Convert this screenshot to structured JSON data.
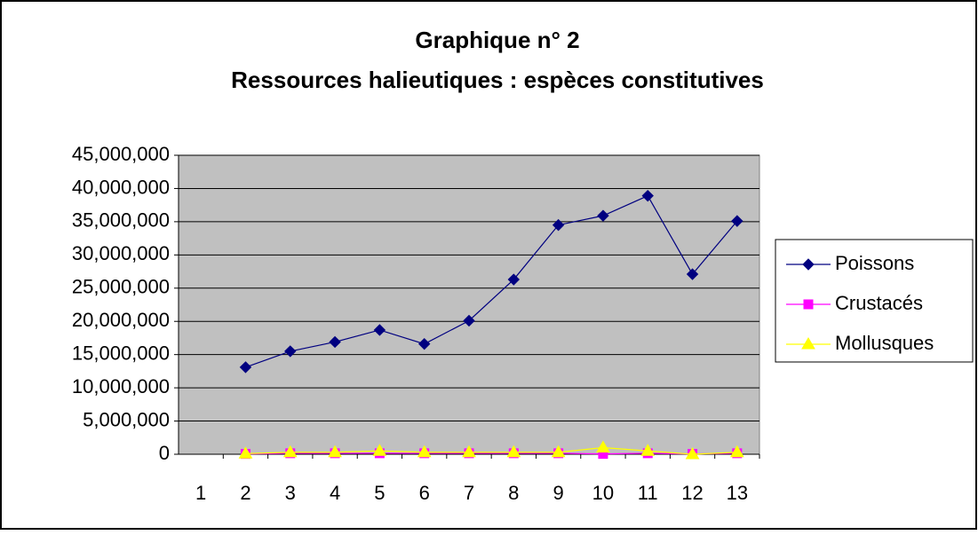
{
  "chart_data": {
    "type": "line",
    "title": "Graphique n° 2",
    "subtitle": "Ressources halieutiques : espèces constitutives",
    "categories": [
      "1",
      "2",
      "3",
      "4",
      "5",
      "6",
      "7",
      "8",
      "9",
      "10",
      "11",
      "12",
      "13"
    ],
    "series": [
      {
        "name": "Poissons",
        "color": "#000080",
        "marker": "diamond",
        "values": [
          null,
          13100000,
          15500000,
          16900000,
          18700000,
          16600000,
          20100000,
          26300000,
          34500000,
          35900000,
          38900000,
          27100000,
          35100000
        ]
      },
      {
        "name": "Crustacés",
        "color": "#ff00ff",
        "marker": "square",
        "values": [
          null,
          50000,
          150000,
          150000,
          150000,
          150000,
          150000,
          150000,
          150000,
          50000,
          150000,
          50000,
          150000
        ]
      },
      {
        "name": "Mollusques",
        "color": "#ffff00",
        "marker": "triangle",
        "values": [
          null,
          100000,
          300000,
          300000,
          500000,
          300000,
          300000,
          300000,
          300000,
          1000000,
          500000,
          0,
          300000
        ]
      }
    ],
    "ylim": [
      0,
      45000000
    ],
    "yticks": [
      0,
      {
        "value": 5000000,
        "label": "5,000,000"
      },
      {
        "value": 10000000,
        "label": "10,000,000"
      },
      {
        "value": 15000000,
        "label": "15,000,000"
      },
      {
        "value": 20000000,
        "label": "20,000,000"
      },
      {
        "value": 25000000,
        "label": "25,000,000"
      },
      {
        "value": 30000000,
        "label": "30,000,000"
      },
      {
        "value": 35000000,
        "label": "35,000,000"
      },
      {
        "value": 40000000,
        "label": "40,000,000"
      },
      {
        "value": 45000000,
        "label": "45,000,000"
      }
    ],
    "grid": true,
    "legend": "right"
  }
}
